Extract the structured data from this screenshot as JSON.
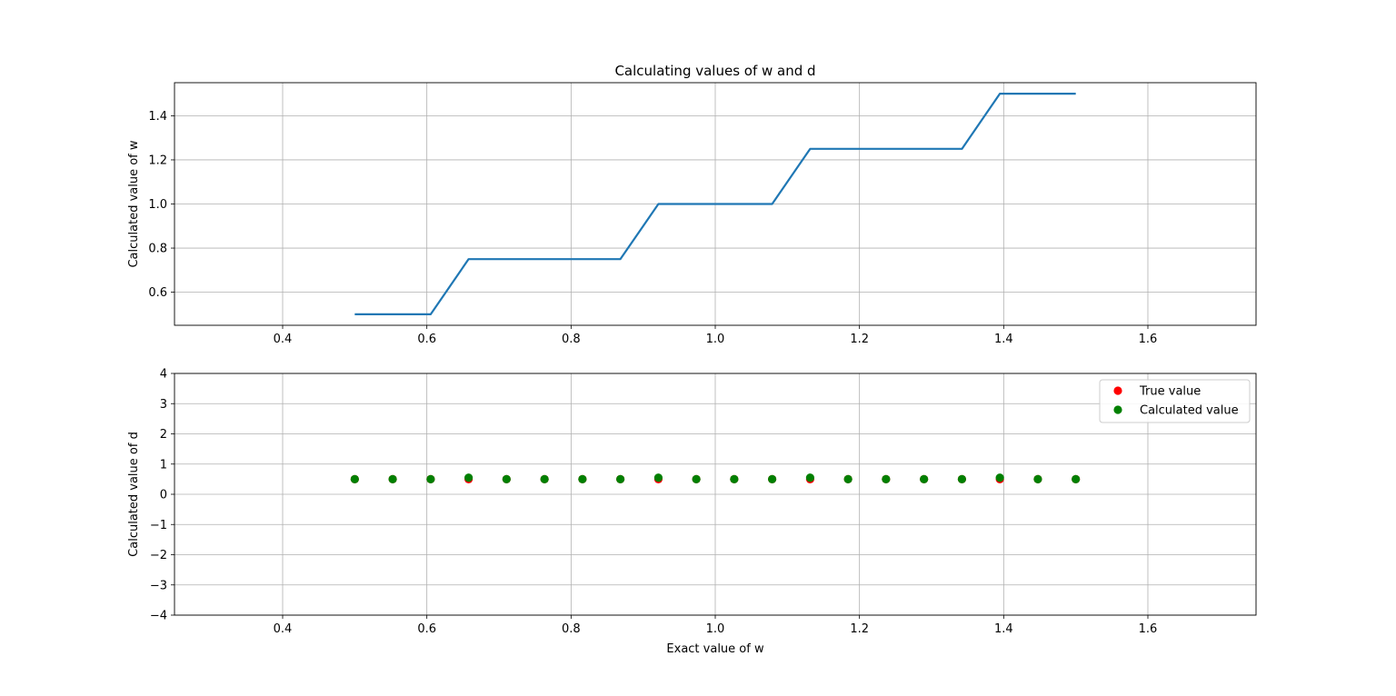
{
  "chart_data": [
    {
      "type": "line",
      "title": "Calculating values of w and d",
      "xlabel": "",
      "ylabel": "Calculated value of w",
      "xlim": [
        0.25,
        1.75
      ],
      "ylim": [
        0.45,
        1.55
      ],
      "xticks": [
        "0.4",
        "0.6",
        "0.8",
        "1.0",
        "1.2",
        "1.4",
        "1.6"
      ],
      "yticks": [
        "0.6",
        "0.8",
        "1.0",
        "1.2",
        "1.4"
      ],
      "grid": true,
      "color": "#1f77b4",
      "series": [
        {
          "x": [
            0.5,
            0.5526,
            0.6053,
            0.6579,
            0.7105,
            0.7632,
            0.8158,
            0.8684,
            0.9211,
            0.9737,
            1.0263,
            1.0789,
            1.1316,
            1.1842,
            1.2368,
            1.2895,
            1.3421,
            1.3947,
            1.4474,
            1.5
          ],
          "values": [
            0.5,
            0.5,
            0.5,
            0.75,
            0.75,
            0.75,
            0.75,
            0.75,
            1.0,
            1.0,
            1.0,
            1.0,
            1.25,
            1.25,
            1.25,
            1.25,
            1.25,
            1.5,
            1.5,
            1.5
          ]
        }
      ]
    },
    {
      "type": "scatter",
      "title": "",
      "xlabel": "Exact value of w",
      "ylabel": "Calculated value of d",
      "xlim": [
        0.25,
        1.75
      ],
      "ylim": [
        -4,
        4
      ],
      "xticks": [
        "0.4",
        "0.6",
        "0.8",
        "1.0",
        "1.2",
        "1.4",
        "1.6"
      ],
      "yticks": [
        "−4",
        "−3",
        "−2",
        "−1",
        "0",
        "1",
        "2",
        "3",
        "4"
      ],
      "grid": true,
      "legend_position": "top-right",
      "series": [
        {
          "name": "True value",
          "color": "#ff0000",
          "x": [
            0.5,
            0.5526,
            0.6053,
            0.6579,
            0.7105,
            0.7632,
            0.8158,
            0.8684,
            0.9211,
            0.9737,
            1.0263,
            1.0789,
            1.1316,
            1.1842,
            1.2368,
            1.2895,
            1.3421,
            1.3947,
            1.4474,
            1.5
          ],
          "values": [
            0.5,
            0.5,
            0.5,
            0.5,
            0.5,
            0.5,
            0.5,
            0.5,
            0.5,
            0.5,
            0.5,
            0.5,
            0.5,
            0.5,
            0.5,
            0.5,
            0.5,
            0.5,
            0.5,
            0.5
          ]
        },
        {
          "name": "Calculated value",
          "color": "#008000",
          "x": [
            0.5,
            0.5526,
            0.6053,
            0.6579,
            0.7105,
            0.7632,
            0.8158,
            0.8684,
            0.9211,
            0.9737,
            1.0263,
            1.0789,
            1.1316,
            1.1842,
            1.2368,
            1.2895,
            1.3421,
            1.3947,
            1.4474,
            1.5
          ],
          "values": [
            0.5,
            0.5,
            0.5,
            0.55,
            0.5,
            0.5,
            0.5,
            0.5,
            0.55,
            0.5,
            0.5,
            0.5,
            0.55,
            0.5,
            0.5,
            0.5,
            0.5,
            0.55,
            0.5,
            0.5
          ]
        }
      ]
    }
  ]
}
